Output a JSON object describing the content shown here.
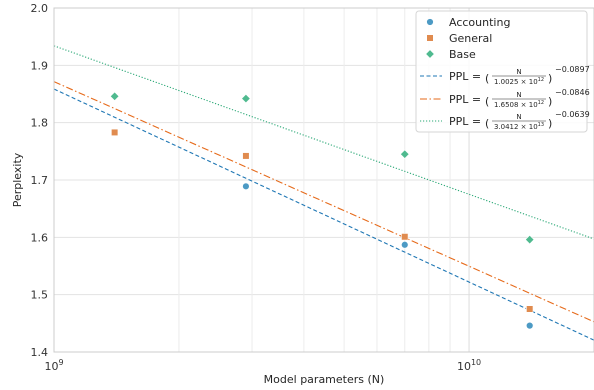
{
  "chart_data": {
    "type": "scatter",
    "title": "",
    "xlabel": "Model parameters (N)",
    "ylabel": "Perplexity",
    "xscale": "log",
    "xlim": [
      1000000000,
      20000000000
    ],
    "ylim": [
      1.4,
      2.0
    ],
    "grid": true,
    "legend_position": "top-right",
    "x_ticks": [
      {
        "value": 1000000000,
        "base": "10",
        "exp": "9"
      },
      {
        "value": 10000000000,
        "base": "10",
        "exp": "10"
      }
    ],
    "y_ticks": [
      {
        "value": 1.4,
        "label": "1.4"
      },
      {
        "value": 1.5,
        "label": "1.5"
      },
      {
        "value": 1.6,
        "label": "1.6"
      },
      {
        "value": 1.7,
        "label": "1.7"
      },
      {
        "value": 1.8,
        "label": "1.8"
      },
      {
        "value": 1.9,
        "label": "1.9"
      },
      {
        "value": 2.0,
        "label": "2.0"
      }
    ],
    "series": [
      {
        "name": "Accounting",
        "marker": "circle",
        "color": "#4c9ac4",
        "x": [
          1400000000,
          2900000000,
          7000000000,
          14000000000
        ],
        "y": [
          1.783,
          1.689,
          1.587,
          1.446
        ]
      },
      {
        "name": "General",
        "marker": "square",
        "color": "#e08b4f",
        "x": [
          1400000000,
          2900000000,
          7000000000,
          14000000000
        ],
        "y": [
          1.783,
          1.742,
          1.601,
          1.475
        ]
      },
      {
        "name": "Base",
        "marker": "diamond",
        "color": "#4fba8f",
        "x": [
          1400000000,
          2900000000,
          7000000000,
          14000000000
        ],
        "y": [
          1.846,
          1.842,
          1.745,
          1.596
        ]
      }
    ],
    "fits": [
      {
        "series": "Accounting",
        "color": "#1f77b4",
        "dash": "dashed",
        "coef": "1.0025",
        "coef_exp": "12",
        "exponent": "−0.0897",
        "nc": 1002500000000.0,
        "alpha": 0.0897
      },
      {
        "series": "General",
        "color": "#e66a1a",
        "dash": "dashdot",
        "coef": "1.6508",
        "coef_exp": "12",
        "exponent": "−0.0846",
        "nc": 1650800000000.0,
        "alpha": 0.0846
      },
      {
        "series": "Base",
        "color": "#2aa876",
        "dash": "dotted",
        "coef": "3.0412",
        "coef_exp": "13",
        "exponent": "−0.0639",
        "nc": 30412000000000.0,
        "alpha": 0.0639
      }
    ],
    "fit_label": {
      "ppl": "PPL",
      "equals": "=",
      "numerator": "N",
      "times": "×",
      "ten": "10",
      "lparen": "(",
      "rparen": ")"
    }
  }
}
